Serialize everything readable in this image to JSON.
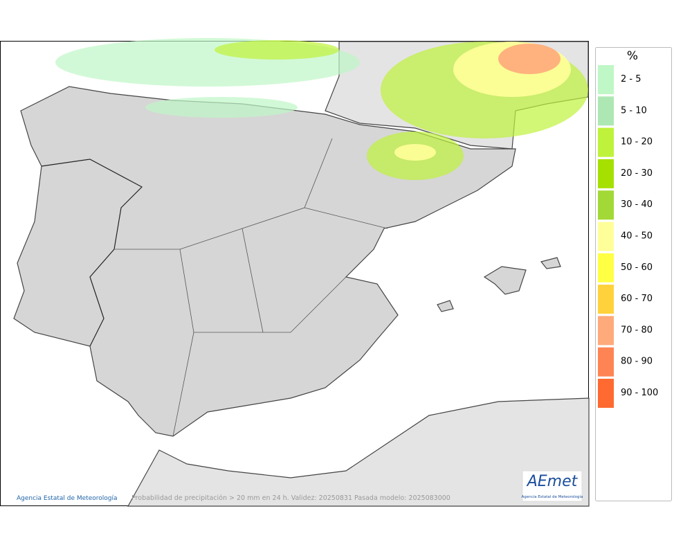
{
  "map": {
    "caption": "Probabilidad de precipitación > 20 mm en 24 h. Validez: 20250831 Pasada modelo: 2025083000",
    "credit": "Agencia Estatal de Meteorología"
  },
  "logo": {
    "name": "AEmet",
    "subtitle": "Agencia Estatal de Meteorología"
  },
  "legend": {
    "title": "%",
    "items": [
      {
        "label": "2 - 5",
        "color": "#bff7c6"
      },
      {
        "label": "5 - 10",
        "color": "#ade8b4"
      },
      {
        "label": "10 - 20",
        "color": "#bff23a"
      },
      {
        "label": "20 - 30",
        "color": "#a5e000"
      },
      {
        "label": "30 - 40",
        "color": "#a3d936"
      },
      {
        "label": "40 - 50",
        "color": "#ffff99"
      },
      {
        "label": "50 - 60",
        "color": "#ffff44"
      },
      {
        "label": "60 - 70",
        "color": "#ffd23c"
      },
      {
        "label": "70 - 80",
        "color": "#ffaa7a"
      },
      {
        "label": "80 - 90",
        "color": "#ff8454"
      },
      {
        "label": "90 - 100",
        "color": "#ff6a30"
      }
    ]
  }
}
